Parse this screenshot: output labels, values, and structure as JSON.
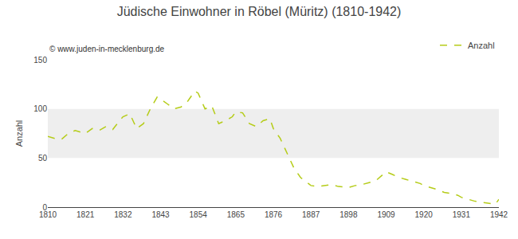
{
  "chart_data": {
    "type": "line",
    "title": "Jüdische Einwohner in Röbel (Müritz) (1810-1942)",
    "subtitle": "© www.juden-in-mecklenburg.de",
    "ylabel": "Anzahl",
    "x": [
      1810,
      1812,
      1814,
      1816,
      1818,
      1820,
      1821,
      1823,
      1825,
      1827,
      1829,
      1831,
      1832,
      1834,
      1836,
      1838,
      1840,
      1842,
      1843,
      1845,
      1847,
      1849,
      1851,
      1853,
      1854,
      1856,
      1858,
      1860,
      1862,
      1864,
      1865,
      1867,
      1869,
      1871,
      1873,
      1875,
      1876,
      1878,
      1880,
      1882,
      1884,
      1886,
      1887,
      1889,
      1891,
      1893,
      1895,
      1897,
      1898,
      1900,
      1902,
      1904,
      1906,
      1908,
      1909,
      1911,
      1913,
      1915,
      1917,
      1919,
      1920,
      1922,
      1924,
      1926,
      1928,
      1930,
      1931,
      1933,
      1935,
      1937,
      1939,
      1941,
      1942
    ],
    "series": [
      {
        "name": "Anzahl",
        "color": "#b5cc18",
        "line_style": "dashed",
        "values": [
          72,
          70,
          69,
          75,
          78,
          76,
          75,
          80,
          78,
          82,
          79,
          88,
          92,
          95,
          80,
          85,
          100,
          112,
          110,
          105,
          100,
          102,
          108,
          118,
          116,
          100,
          103,
          85,
          88,
          92,
          97,
          96,
          85,
          82,
          88,
          90,
          80,
          70,
          55,
          40,
          30,
          25,
          22,
          21,
          22,
          23,
          21,
          20,
          20,
          22,
          23,
          25,
          27,
          33,
          36,
          33,
          30,
          28,
          26,
          24,
          22,
          20,
          18,
          15,
          14,
          12,
          10,
          8,
          6,
          5,
          4,
          3,
          8
        ]
      }
    ],
    "xlim": [
      1810,
      1942
    ],
    "ylim": [
      0,
      150
    ],
    "xticks": [
      1810,
      1821,
      1832,
      1843,
      1854,
      1865,
      1876,
      1887,
      1898,
      1909,
      1920,
      1931,
      1942
    ],
    "yticks": [
      0,
      50,
      100,
      150
    ],
    "grid": false,
    "legend": "upper right",
    "shading": {
      "ylim": [
        50,
        100
      ],
      "color": "#eeeeee"
    }
  }
}
